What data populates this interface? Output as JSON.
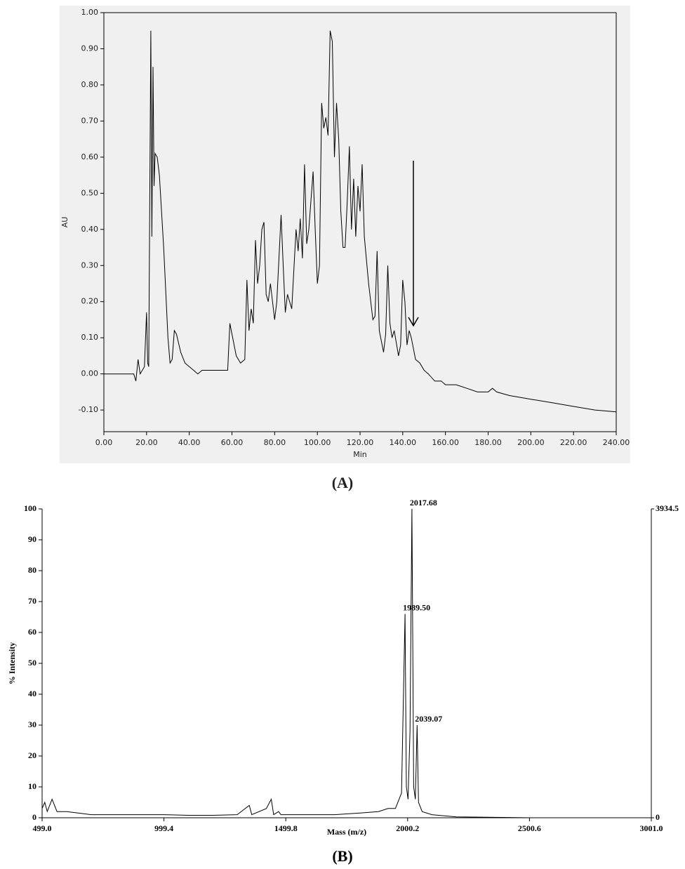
{
  "chart_data": [
    {
      "type": "line",
      "title": "(A)",
      "x_label": "Min",
      "y_label": "AU",
      "color": "#000000",
      "background": "#f0f0f0",
      "xlim": [
        0,
        240
      ],
      "ylim": [
        -0.16,
        1.0
      ],
      "xticks": [
        {
          "value": 0,
          "label": "0.00"
        },
        {
          "value": 20,
          "label": "20.00"
        },
        {
          "value": 40,
          "label": "40.00"
        },
        {
          "value": 60,
          "label": "60.00"
        },
        {
          "value": 80,
          "label": "80.00"
        },
        {
          "value": 100,
          "label": "100.00"
        },
        {
          "value": 120,
          "label": "120.00"
        },
        {
          "value": 140,
          "label": "140.00"
        },
        {
          "value": 160,
          "label": "160.00"
        },
        {
          "value": 180,
          "label": "180.00"
        },
        {
          "value": 200,
          "label": "200.00"
        },
        {
          "value": 220,
          "label": "220.00"
        },
        {
          "value": 240,
          "label": "240.00"
        }
      ],
      "yticks": [
        {
          "value": -0.1,
          "label": "-0.10"
        },
        {
          "value": 0,
          "label": "0.00"
        },
        {
          "value": 0.1,
          "label": "0.10"
        },
        {
          "value": 0.2,
          "label": "0.20"
        },
        {
          "value": 0.3,
          "label": "0.30"
        },
        {
          "value": 0.4,
          "label": "0.40"
        },
        {
          "value": 0.5,
          "label": "0.50"
        },
        {
          "value": 0.6,
          "label": "0.60"
        },
        {
          "value": 0.7,
          "label": "0.70"
        },
        {
          "value": 0.8,
          "label": "0.80"
        },
        {
          "value": 0.9,
          "label": "0.90"
        },
        {
          "value": 1.0,
          "label": "1.00"
        }
      ],
      "x": [
        0,
        14,
        15,
        16,
        17,
        19,
        20,
        20.5,
        21,
        22,
        22.5,
        23,
        23.5,
        24,
        25,
        26,
        28,
        30,
        31,
        32,
        33,
        34,
        36,
        38,
        40,
        42,
        44,
        46,
        50,
        55,
        58,
        59,
        60,
        62,
        64,
        66,
        67,
        68,
        69,
        70,
        71,
        72,
        73,
        74,
        75,
        76,
        77,
        78,
        80,
        81,
        83,
        84,
        85,
        86,
        88,
        90,
        91,
        92,
        93,
        94,
        95,
        96,
        98,
        99,
        100,
        101,
        102,
        103,
        104,
        105,
        106,
        107,
        108,
        109,
        110,
        111,
        112,
        113,
        114,
        115,
        116,
        117,
        118,
        119,
        120,
        121,
        122,
        124,
        126,
        127,
        128,
        129,
        131,
        132,
        133,
        134,
        135,
        136,
        138,
        139,
        140,
        141,
        142,
        143,
        144,
        146,
        148,
        150,
        152,
        155,
        158,
        160,
        165,
        170,
        175,
        180,
        182,
        184,
        190,
        200,
        210,
        220,
        230,
        240
      ],
      "values": [
        0,
        0,
        -0.02,
        0.04,
        0,
        0.02,
        0.17,
        0.03,
        0.02,
        0.95,
        0.38,
        0.85,
        0.52,
        0.61,
        0.6,
        0.55,
        0.35,
        0.1,
        0.03,
        0.04,
        0.12,
        0.11,
        0.06,
        0.03,
        0.02,
        0.01,
        0,
        0.01,
        0.01,
        0.01,
        0.01,
        0.14,
        0.11,
        0.05,
        0.03,
        0.04,
        0.26,
        0.12,
        0.18,
        0.14,
        0.37,
        0.25,
        0.3,
        0.4,
        0.42,
        0.22,
        0.2,
        0.25,
        0.15,
        0.2,
        0.44,
        0.3,
        0.17,
        0.22,
        0.18,
        0.4,
        0.34,
        0.43,
        0.32,
        0.58,
        0.36,
        0.4,
        0.56,
        0.4,
        0.25,
        0.3,
        0.75,
        0.68,
        0.71,
        0.66,
        0.95,
        0.92,
        0.6,
        0.75,
        0.65,
        0.45,
        0.35,
        0.35,
        0.48,
        0.63,
        0.4,
        0.54,
        0.38,
        0.52,
        0.45,
        0.58,
        0.38,
        0.25,
        0.15,
        0.16,
        0.34,
        0.12,
        0.06,
        0.11,
        0.3,
        0.14,
        0.1,
        0.12,
        0.05,
        0.08,
        0.26,
        0.2,
        0.08,
        0.12,
        0.1,
        0.04,
        0.03,
        0.01,
        0,
        -0.02,
        -0.02,
        -0.03,
        -0.03,
        -0.04,
        -0.05,
        -0.05,
        -0.04,
        -0.05,
        -0.06,
        -0.07,
        -0.08,
        -0.09,
        -0.1,
        -0.105
      ]
    },
    {
      "type": "line",
      "title": "(B)",
      "x_label": "Mass (m/z)",
      "y_label": "% Intensity",
      "color": "#000000",
      "xlim": [
        499,
        3001
      ],
      "ylim": [
        0,
        100
      ],
      "xticks": [
        {
          "value": 499,
          "label": "499.0"
        },
        {
          "value": 999.4,
          "label": "999.4"
        },
        {
          "value": 1499.8,
          "label": "1499.8"
        },
        {
          "value": 2000.2,
          "label": "2000.2"
        },
        {
          "value": 2500.6,
          "label": "2500.6"
        },
        {
          "value": 3001,
          "label": "3001.0"
        }
      ],
      "yticks": [
        0,
        10,
        20,
        30,
        40,
        50,
        60,
        70,
        80,
        90,
        100
      ],
      "y2lim": [
        0,
        3934.5
      ],
      "y2ticks": [
        0,
        3934.5
      ],
      "x": [
        499,
        510,
        520,
        540,
        560,
        600,
        650,
        700,
        800,
        900,
        1000,
        1100,
        1200,
        1300,
        1350,
        1360,
        1420,
        1440,
        1450,
        1470,
        1480,
        1600,
        1700,
        1800,
        1880,
        1920,
        1950,
        1975,
        1989.5,
        1995,
        2002,
        2010,
        2017.68,
        2025,
        2032,
        2039.07,
        2045,
        2060,
        2100,
        2200,
        2300,
        2500,
        2800,
        3001
      ],
      "values": [
        3,
        5,
        2,
        6,
        2,
        2,
        1.5,
        1,
        1,
        1,
        1,
        0.8,
        0.8,
        1,
        4,
        1,
        3,
        6,
        1,
        2,
        1,
        1,
        1,
        1.5,
        2,
        3,
        3,
        8,
        66,
        10,
        6,
        28,
        100,
        10,
        6,
        30,
        5,
        2,
        1,
        0.3,
        0.2,
        0,
        0,
        0
      ],
      "annotations": [
        {
          "label": "2017.68",
          "x": 2017.68,
          "y": 100
        },
        {
          "label": "1989.50",
          "x": 1989.5,
          "y": 66
        },
        {
          "label": "2039.07",
          "x": 2039.07,
          "y": 30
        }
      ]
    }
  ]
}
